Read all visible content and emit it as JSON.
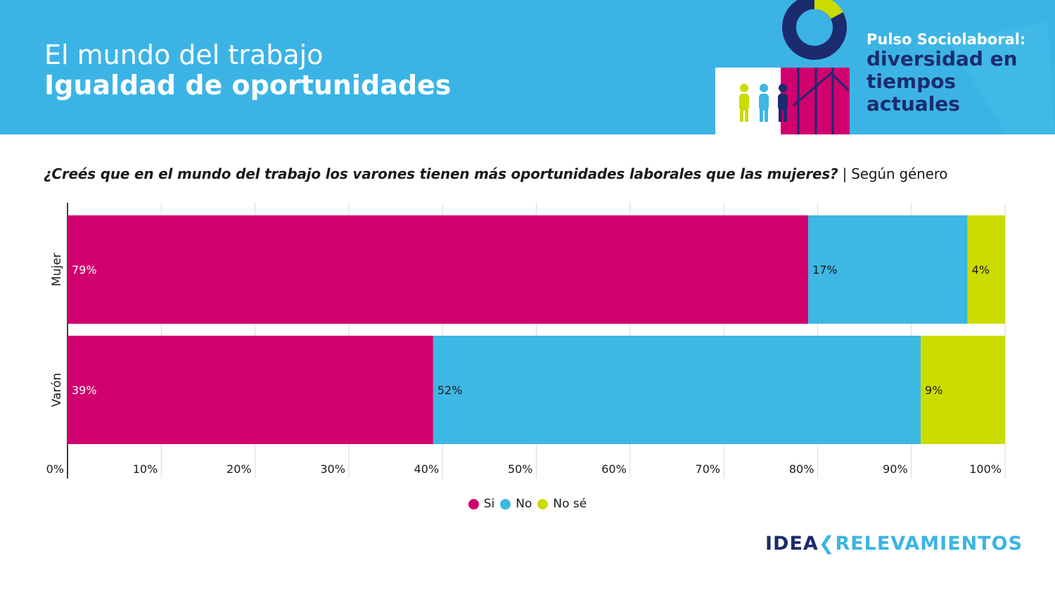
{
  "header": {
    "title_line1": "El mundo del trabajo",
    "title_line2": "Igualdad de oportunidades",
    "brand_line1": "Pulso Sociolaboral:",
    "brand_line2": "diversidad en tiempos actuales"
  },
  "question": {
    "main": "¿Creés que en el mundo del trabajo los varones tienen más oportunidades laborales que las mujeres?",
    "suffix": " | Según género"
  },
  "colors": {
    "header_bg": "#3bb4e5",
    "si": "#d1006f",
    "no": "#3db7e4",
    "nose": "#cbdc00",
    "navy": "#1c2b6e"
  },
  "chart_data": {
    "type": "bar",
    "orientation": "horizontal",
    "stacked": true,
    "categories": [
      "Mujer",
      "Varón"
    ],
    "series": [
      {
        "name": "Si",
        "values": [
          79,
          39
        ],
        "labels": [
          "79%",
          "39%"
        ]
      },
      {
        "name": "No",
        "values": [
          17,
          52
        ],
        "labels": [
          "17%",
          "52%"
        ]
      },
      {
        "name": "No sé",
        "values": [
          4,
          9
        ],
        "labels": [
          "4%",
          "9%"
        ]
      }
    ],
    "xlim": [
      0,
      100
    ],
    "xticks": [
      "0%",
      "10%",
      "20%",
      "30%",
      "40%",
      "50%",
      "60%",
      "70%",
      "80%",
      "90%",
      "100%"
    ],
    "grid": true,
    "legend": "bottom-center"
  },
  "footer": {
    "logo_part1": "IDEA",
    "logo_part2": "RELEVAMIENTOS"
  }
}
